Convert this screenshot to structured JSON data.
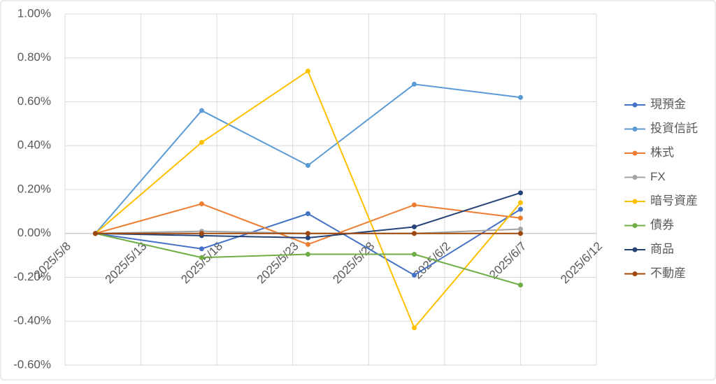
{
  "chart_data": {
    "type": "line",
    "x": [
      "2025/5/10",
      "2025/5/17",
      "2025/5/24",
      "2025/5/31",
      "2025/6/7"
    ],
    "xlim": [
      "2025/5/8",
      "2025/6/12"
    ],
    "xticks": [
      "2025/5/8",
      "2025/5/13",
      "2025/5/18",
      "2025/5/23",
      "2025/5/28",
      "2025/6/2",
      "2025/6/7",
      "2025/6/12"
    ],
    "ylim": [
      -0.6,
      1.0
    ],
    "yticks": [
      {
        "value": -0.6,
        "label": "-0.60%"
      },
      {
        "value": -0.4,
        "label": "-0.40%"
      },
      {
        "value": -0.2,
        "label": "-0.20%"
      },
      {
        "value": 0,
        "label": "0.00%"
      },
      {
        "value": 0.2,
        "label": "0.20%"
      },
      {
        "value": 0.4,
        "label": "0.40%"
      },
      {
        "value": 0.6,
        "label": "0.60%"
      },
      {
        "value": 0.8,
        "label": "0.80%"
      },
      {
        "value": 1.0,
        "label": "1.00%"
      }
    ],
    "grid": true,
    "legend": "right",
    "series": [
      {
        "name": "現預金",
        "color": "#4472c4",
        "values": [
          0,
          -0.07,
          0.09,
          -0.19,
          0.11
        ]
      },
      {
        "name": "投資信託",
        "color": "#5b9bd5",
        "values": [
          0,
          0.56,
          0.31,
          0.68,
          0.62
        ]
      },
      {
        "name": "株式",
        "color": "#ed7d31",
        "values": [
          0,
          0.135,
          -0.05,
          0.13,
          0.07
        ]
      },
      {
        "name": "FX",
        "color": "#a5a5a5",
        "values": [
          0,
          0.01,
          0.0,
          0.0,
          0.02
        ]
      },
      {
        "name": "暗号資産",
        "color": "#ffc000",
        "values": [
          0,
          0.415,
          0.74,
          -0.43,
          0.14
        ]
      },
      {
        "name": "債券",
        "color": "#70ad47",
        "values": [
          0,
          -0.11,
          -0.095,
          -0.095,
          -0.235
        ]
      },
      {
        "name": "商品",
        "color": "#264478",
        "values": [
          0,
          -0.01,
          -0.02,
          0.03,
          0.185
        ]
      },
      {
        "name": "不動産",
        "color": "#9e480e",
        "values": [
          0,
          0,
          0,
          0,
          0
        ]
      }
    ]
  }
}
